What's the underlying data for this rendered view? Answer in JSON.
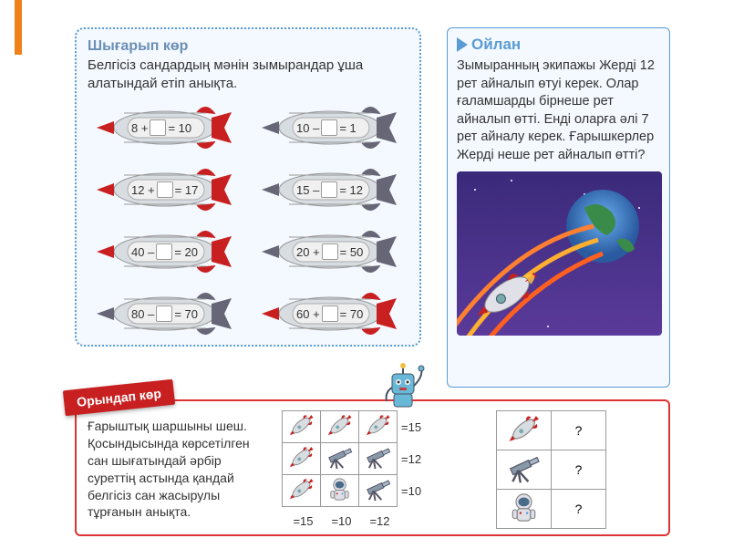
{
  "section1": {
    "title": "Шығарып көр",
    "subtitle": "Белгісіз сандардың мәнін зымырандар ұша алатындай етіп анықта.",
    "equations": [
      {
        "a": "8",
        "op": "+",
        "r": "10",
        "tip": "red"
      },
      {
        "a": "10",
        "op": "–",
        "r": "1",
        "tip": "grey"
      },
      {
        "a": "12",
        "op": "+",
        "r": "17",
        "tip": "red"
      },
      {
        "a": "15",
        "op": "–",
        "r": "12",
        "tip": "grey"
      },
      {
        "a": "40",
        "op": "–",
        "r": "20",
        "tip": "red"
      },
      {
        "a": "20",
        "op": "+",
        "r": "50",
        "tip": "grey"
      },
      {
        "a": "80",
        "op": "–",
        "r": "70",
        "tip": "grey"
      },
      {
        "a": "60",
        "op": "+",
        "r": "70",
        "tip": "red"
      }
    ],
    "colors": {
      "red": "#c82020",
      "grey": "#667",
      "body": "#d8dde2",
      "stripe": "#888"
    }
  },
  "section2": {
    "title": "Ойлан",
    "body": "Зымыранның экипажы Жерді 12 рет айналып өтуі керек. Олар ғаламшарды бірнеше рет айналып өтті. Енді оларға әлі 7 рет айналу керек. Ғарышкерлер Жерді неше рет айналып өтті?",
    "space_colors": {
      "bg_top": "#3a2a7a",
      "bg_bot": "#5a3a9a",
      "earth": "#3a8a4a",
      "ocean": "#3a6ad5",
      "orbit": "#f0a040",
      "rocket_body": "#e0e0e8",
      "rocket_tip": "#c82020"
    }
  },
  "section3": {
    "ribbon": "Орындап көр",
    "text": "Ғарыштық шаршыны шеш. Қосындысында көрсетілген сан шығатындай әрбір суреттің астында қандай белгісіз сан жасырулы тұрғанын анықта.",
    "row_sums": [
      "=15",
      "=12",
      "=10"
    ],
    "col_sums": [
      "=15",
      "=10",
      "=12"
    ],
    "q_mark": "?",
    "grid1": [
      [
        "rocket",
        "rocket",
        "rocket"
      ],
      [
        "rocket",
        "telescope",
        "telescope"
      ],
      [
        "rocket",
        "astronaut",
        "telescope"
      ]
    ],
    "grid2": [
      "rocket",
      "telescope",
      "astronaut"
    ]
  }
}
